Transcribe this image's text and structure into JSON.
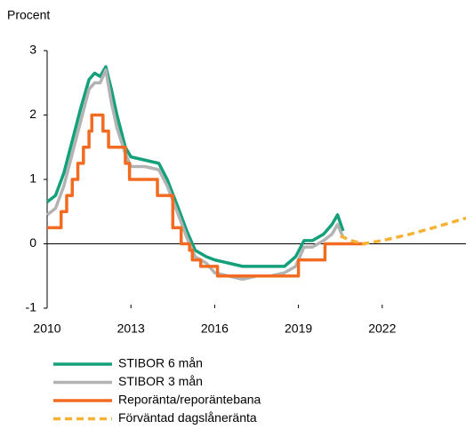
{
  "chart_data": {
    "type": "line",
    "ylabel": "Procent",
    "xlim": [
      2010,
      2025
    ],
    "xticks": [
      2010,
      2013,
      2016,
      2019,
      2022
    ],
    "ylim": [
      -1,
      3
    ],
    "yticks": [
      -1,
      0,
      1,
      2,
      3
    ],
    "series": [
      {
        "name": "STIBOR 6 mån",
        "color": "#13a07a",
        "dash": false,
        "x": [
          2010,
          2010.3,
          2010.6,
          2010.9,
          2011.2,
          2011.5,
          2011.7,
          2011.9,
          2012.1,
          2012.3,
          2012.5,
          2012.8,
          2013.0,
          2013.5,
          2014.0,
          2014.3,
          2014.7,
          2015.0,
          2015.3,
          2015.7,
          2016.0,
          2016.5,
          2017.0,
          2017.5,
          2018.0,
          2018.5,
          2018.9,
          2019.2,
          2019.5,
          2019.9,
          2020.2,
          2020.4,
          2020.6
        ],
        "values": [
          0.65,
          0.75,
          1.1,
          1.6,
          2.1,
          2.55,
          2.65,
          2.6,
          2.75,
          2.4,
          2.0,
          1.5,
          1.35,
          1.3,
          1.25,
          1.0,
          0.55,
          0.2,
          -0.1,
          -0.2,
          -0.25,
          -0.3,
          -0.35,
          -0.35,
          -0.35,
          -0.35,
          -0.2,
          0.05,
          0.05,
          0.15,
          0.3,
          0.45,
          0.2
        ]
      },
      {
        "name": "STIBOR 3 mån",
        "color": "#b3b3b3",
        "dash": false,
        "x": [
          2010,
          2010.3,
          2010.6,
          2010.9,
          2011.2,
          2011.5,
          2011.7,
          2011.9,
          2012.1,
          2012.3,
          2012.5,
          2012.8,
          2013.0,
          2013.5,
          2014.0,
          2014.3,
          2014.7,
          2015.0,
          2015.3,
          2015.7,
          2016.0,
          2016.5,
          2017.0,
          2017.5,
          2018.0,
          2018.5,
          2018.9,
          2019.2,
          2019.5,
          2019.9,
          2020.2,
          2020.4,
          2020.6
        ],
        "values": [
          0.45,
          0.55,
          0.9,
          1.4,
          1.9,
          2.4,
          2.5,
          2.5,
          2.7,
          2.2,
          1.8,
          1.4,
          1.2,
          1.2,
          1.15,
          0.9,
          0.45,
          0.1,
          -0.2,
          -0.3,
          -0.45,
          -0.5,
          -0.55,
          -0.5,
          -0.5,
          -0.45,
          -0.35,
          -0.05,
          -0.05,
          0.05,
          0.15,
          0.3,
          0.1
        ]
      },
      {
        "name": "Reporänta/reporäntebana",
        "color": "#f26b22",
        "dash": false,
        "x": [
          2010,
          2010.5,
          2010.5,
          2010.7,
          2010.7,
          2010.9,
          2010.9,
          2011.1,
          2011.1,
          2011.3,
          2011.3,
          2011.5,
          2011.5,
          2011.6,
          2011.6,
          2012.0,
          2012.0,
          2012.2,
          2012.2,
          2012.8,
          2012.8,
          2012.95,
          2012.95,
          2013.95,
          2013.95,
          2014.5,
          2014.5,
          2014.8,
          2014.8,
          2015.1,
          2015.1,
          2015.2,
          2015.2,
          2015.5,
          2015.5,
          2016.1,
          2016.1,
          2019.0,
          2019.0,
          2019.95,
          2019.95,
          2021.4
        ],
        "values": [
          0.25,
          0.25,
          0.5,
          0.5,
          0.75,
          0.75,
          1.0,
          1.0,
          1.25,
          1.25,
          1.5,
          1.5,
          1.75,
          1.75,
          2.0,
          2.0,
          1.75,
          1.75,
          1.5,
          1.5,
          1.25,
          1.25,
          1.0,
          1.0,
          0.75,
          0.75,
          0.25,
          0.25,
          0.0,
          0.0,
          -0.1,
          -0.1,
          -0.25,
          -0.25,
          -0.35,
          -0.35,
          -0.5,
          -0.5,
          -0.25,
          -0.25,
          0.0,
          0.0
        ]
      },
      {
        "name": "Förväntad dagslåneränta",
        "color": "#f7b234",
        "dash": true,
        "x": [
          2020.5,
          2020.9,
          2021.3,
          2022.0,
          2023.0,
          2024.0,
          2025.0
        ],
        "values": [
          0.12,
          0.05,
          0.0,
          0.05,
          0.15,
          0.27,
          0.4
        ]
      }
    ]
  }
}
